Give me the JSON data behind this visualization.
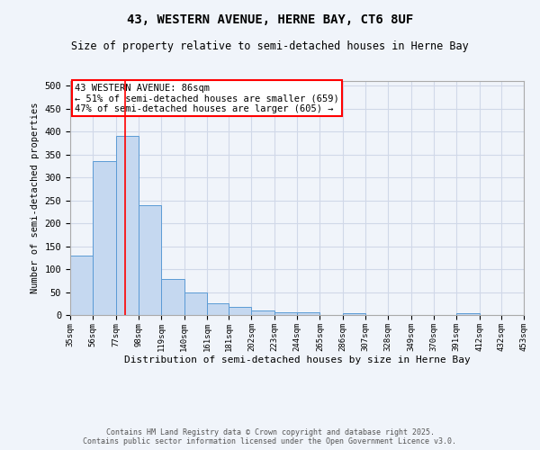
{
  "title1": "43, WESTERN AVENUE, HERNE BAY, CT6 8UF",
  "title2": "Size of property relative to semi-detached houses in Herne Bay",
  "xlabel": "Distribution of semi-detached houses by size in Herne Bay",
  "ylabel": "Number of semi-detached properties",
  "bins": [
    "35sqm",
    "56sqm",
    "77sqm",
    "98sqm",
    "119sqm",
    "140sqm",
    "161sqm",
    "181sqm",
    "202sqm",
    "223sqm",
    "244sqm",
    "265sqm",
    "286sqm",
    "307sqm",
    "328sqm",
    "349sqm",
    "370sqm",
    "391sqm",
    "412sqm",
    "432sqm",
    "453sqm"
  ],
  "bin_edges": [
    35,
    56,
    77,
    98,
    119,
    140,
    161,
    181,
    202,
    223,
    244,
    265,
    286,
    307,
    328,
    349,
    370,
    391,
    412,
    432,
    453
  ],
  "values": [
    130,
    335,
    390,
    240,
    78,
    50,
    25,
    18,
    10,
    5,
    5,
    0,
    3,
    0,
    0,
    0,
    0,
    3,
    0,
    0
  ],
  "bar_facecolor": "#c5d8f0",
  "bar_edgecolor": "#5b9bd5",
  "grid_color": "#d0d8e8",
  "property_line_x": 86,
  "property_line_color": "red",
  "annotation_title": "43 WESTERN AVENUE: 86sqm",
  "annotation_line1": "← 51% of semi-detached houses are smaller (659)",
  "annotation_line2": "47% of semi-detached houses are larger (605) →",
  "annotation_box_color": "white",
  "annotation_box_edgecolor": "red",
  "ylim": [
    0,
    510
  ],
  "yticks": [
    0,
    50,
    100,
    150,
    200,
    250,
    300,
    350,
    400,
    450,
    500
  ],
  "footnote1": "Contains HM Land Registry data © Crown copyright and database right 2025.",
  "footnote2": "Contains public sector information licensed under the Open Government Licence v3.0.",
  "background_color": "#f0f4fa"
}
